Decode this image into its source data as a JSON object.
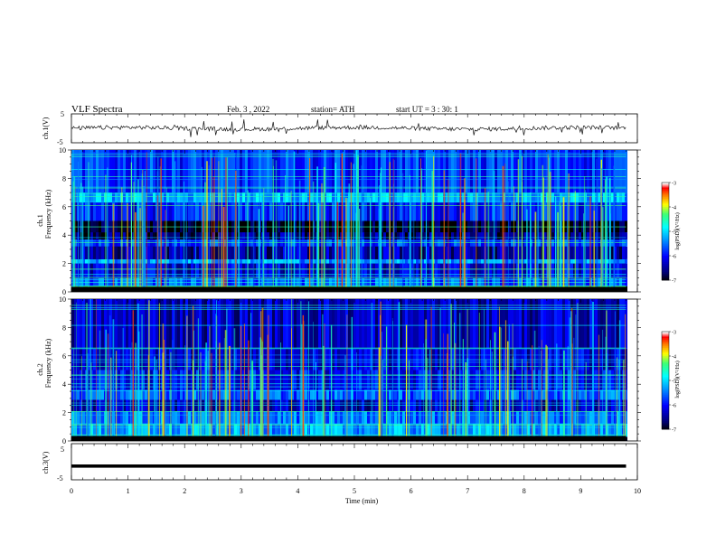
{
  "header": {
    "title": "VLF  Spectra",
    "date": "Feb. 3  , 2022",
    "station": "station= ATH",
    "start": "start  UT  =  3  : 30: 1"
  },
  "chart_data": [
    {
      "type": "line",
      "panel": "ch1-waveform",
      "ylabel": "ch.1(V)",
      "ylim": [
        -5,
        5
      ],
      "ytick_labels": [
        "5",
        "-5"
      ],
      "xlim": [
        0,
        10
      ],
      "series": [
        {
          "values_desc": "",
          "x_end": 9.8,
          "baseline": 0,
          "noise_amp": 0.7
        }
      ]
    },
    {
      "type": "heatmap",
      "panel": "ch1-spectrogram",
      "ylabel": "Frequency (kHz)",
      "channel_label": "ch.1",
      "ylim": [
        0,
        10
      ],
      "ytick_labels": [
        "0",
        "2",
        "4",
        "6",
        "8",
        "10"
      ],
      "xlim": [
        0,
        9.8
      ],
      "bands": [
        {
          "f0": 0.0,
          "f1": 0.4,
          "level": -7.2
        },
        {
          "f0": 0.4,
          "f1": 1.0,
          "level": -5.6
        },
        {
          "f0": 1.0,
          "f1": 2.0,
          "level": -6.2
        },
        {
          "f0": 2.0,
          "f1": 2.3,
          "level": -5.3
        },
        {
          "f0": 2.3,
          "f1": 3.2,
          "level": -6.4
        },
        {
          "f0": 3.2,
          "f1": 3.7,
          "level": -5.8
        },
        {
          "f0": 3.7,
          "f1": 4.2,
          "level": -6.6
        },
        {
          "f0": 4.2,
          "f1": 5.0,
          "level": -6.9
        },
        {
          "f0": 5.0,
          "f1": 6.3,
          "level": -5.9
        },
        {
          "f0": 6.3,
          "f1": 7.0,
          "level": -5.2
        },
        {
          "f0": 7.0,
          "f1": 10.0,
          "level": -5.8
        }
      ],
      "colorbar": {
        "label": "log(PSD)(V²/Hz)",
        "min": -7,
        "max": -3,
        "tick_labels": [
          "-3",
          "-4",
          "-5",
          "-6",
          "-7"
        ]
      }
    },
    {
      "type": "heatmap",
      "panel": "ch2-spectrogram",
      "ylabel": "Frequency (kHz)",
      "channel_label": "ch.2",
      "ylim": [
        0,
        10
      ],
      "ytick_labels": [
        "0",
        "2",
        "4",
        "6",
        "8",
        "10"
      ],
      "xlim": [
        0,
        9.8
      ],
      "bands": [
        {
          "f0": 0.0,
          "f1": 0.3,
          "level": -7.2
        },
        {
          "f0": 0.3,
          "f1": 1.2,
          "level": -5.3
        },
        {
          "f0": 1.2,
          "f1": 2.1,
          "level": -5.5
        },
        {
          "f0": 2.1,
          "f1": 2.9,
          "level": -6.3
        },
        {
          "f0": 2.9,
          "f1": 3.6,
          "level": -5.6
        },
        {
          "f0": 3.6,
          "f1": 5.0,
          "level": -6.0
        },
        {
          "f0": 5.0,
          "f1": 6.5,
          "level": -6.2
        },
        {
          "f0": 6.5,
          "f1": 10.0,
          "level": -6.3
        }
      ],
      "colorbar": {
        "label": "log(PSD)(V²/Hz)",
        "min": -7,
        "max": -3,
        "tick_labels": [
          "-3",
          "-4",
          "-5",
          "-6",
          "-7"
        ]
      }
    },
    {
      "type": "line",
      "panel": "ch3-waveform",
      "ylabel": "ch.3(V)",
      "ylim": [
        -5,
        5
      ],
      "ytick_labels": [
        "5",
        "-5"
      ],
      "xlim": [
        0,
        10
      ],
      "xlabel": "Time  (min)",
      "xtick_labels": [
        "0",
        "1",
        "2",
        "3",
        "4",
        "5",
        "6",
        "7",
        "8",
        "9",
        "10"
      ],
      "series": [
        {
          "x_end": 9.8,
          "baseline": -1.2,
          "thickness_v": 0.45
        }
      ]
    }
  ],
  "colors": {
    "axis": "#000000",
    "trace": "#111111",
    "colormap": [
      "#000000",
      "#000080",
      "#0000ff",
      "#00a0ff",
      "#00ffff",
      "#40ff80",
      "#ffff00",
      "#ff8000",
      "#ff0000",
      "#ffffff"
    ]
  }
}
